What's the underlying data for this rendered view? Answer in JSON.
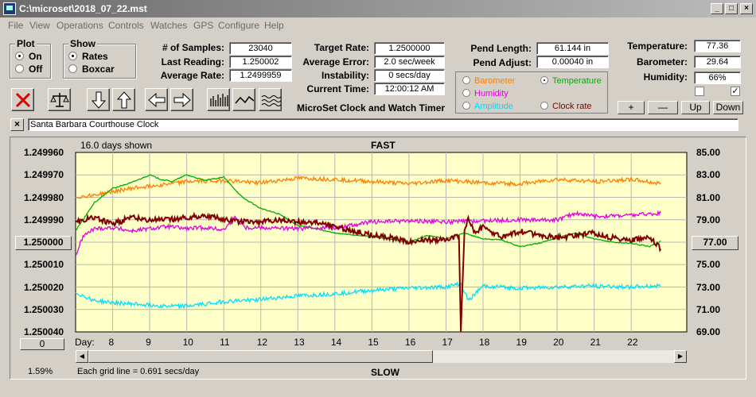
{
  "window": {
    "title": "C:\\microset\\2018_07_22.mst"
  },
  "menu": [
    "File",
    "View",
    "Operations",
    "Controls",
    "Watches",
    "GPS",
    "Configure",
    "Help"
  ],
  "plot_group": {
    "label": "Plot",
    "options": [
      "On",
      "Off"
    ],
    "selected": "On"
  },
  "show_group": {
    "label": "Show",
    "options": [
      "Rates",
      "Boxcar"
    ],
    "selected": "Rates"
  },
  "stats": {
    "samples_label": "# of Samples:",
    "samples": "23040",
    "last_label": "Last Reading:",
    "last": "1.250002",
    "avg_label": "Average Rate:",
    "avg": "1.2499959"
  },
  "targets": {
    "target_label": "Target Rate:",
    "target": "1.2500000",
    "error_label": "Average Error:",
    "error": "2.0 sec/week",
    "instab_label": "Instability:",
    "instab": "0 secs/day",
    "time_label": "Current Time:",
    "time": "12:00:12 AM"
  },
  "pend": {
    "length_label": "Pend Length:",
    "length": "61.144 in",
    "adjust_label": "Pend Adjust:",
    "adjust": "0.00040 in"
  },
  "env": {
    "temp_label": "Temperature:",
    "temp": "77.36",
    "baro_label": "Barometer:",
    "baro": "29.64",
    "hum_label": "Humidity:",
    "hum": "66%"
  },
  "legend": {
    "barometer": "Barometer",
    "temperature": "Temperature",
    "humidity": "Humidity",
    "amplitude": "Amplitude",
    "clock_rate": "Clock rate",
    "selected": "Temperature"
  },
  "checkboxes": {
    "left": false,
    "right": true
  },
  "adjust_buttons": [
    "+",
    "—",
    "Up",
    "Down"
  ],
  "subtitle": "MicroSet Clock and Watch Timer",
  "watch_name": "Santa Barbara Courthouse Clock",
  "colors": {
    "barometer": "#ff8000",
    "temperature": "#00b000",
    "humidity": "#e000e0",
    "amplitude": "#00e0ff",
    "clock_rate": "#800000",
    "plot_bg": "#ffffc8"
  },
  "plot": {
    "days_shown": "16.0 days shown",
    "fast_label": "FAST",
    "slow_label": "SLOW",
    "grid_note": "Each grid line = 0.691 secs/day",
    "left_center_value": "1.250000",
    "right_center_value": "77.00",
    "bottom_button": "0",
    "percent": "1.59%",
    "day_label": "Day:"
  },
  "chart_data": {
    "type": "line",
    "x_ticks": [
      8,
      9,
      10,
      11,
      12,
      13,
      14,
      15,
      16,
      17,
      18,
      19,
      20,
      21,
      22
    ],
    "xlim": [
      7,
      23.5
    ],
    "left_axis": {
      "ticks": [
        "1.249960",
        "1.249970",
        "1.249980",
        "1.249990",
        "1.250000",
        "1.250010",
        "1.250020",
        "1.250030",
        "1.250040"
      ],
      "ylim": [
        1.24996,
        1.25004
      ],
      "reversed": true
    },
    "right_axis": {
      "ticks": [
        "85.00",
        "83.00",
        "81.00",
        "79.00",
        "77.00",
        "75.00",
        "73.00",
        "71.00",
        "69.00"
      ],
      "ylim": [
        69,
        85
      ]
    },
    "series": [
      {
        "key": "barometer",
        "axis": "right",
        "x": [
          7,
          7.5,
          8,
          8.5,
          9,
          9.5,
          10,
          11,
          12,
          13,
          14,
          15,
          16,
          17,
          18,
          19,
          20,
          21,
          22,
          22.8
        ],
        "y": [
          81,
          81.2,
          81.5,
          81.8,
          82,
          82.2,
          82.4,
          82.5,
          82.3,
          82.7,
          82.6,
          82.4,
          82.2,
          82.5,
          82.3,
          82.2,
          82.6,
          82.4,
          82.6,
          82.2
        ]
      },
      {
        "key": "temperature",
        "axis": "right",
        "x": [
          7,
          7.5,
          8,
          8.5,
          9,
          9.3,
          9.6,
          10,
          10.5,
          11,
          11.5,
          12,
          12.5,
          13,
          13.5,
          14,
          15,
          16,
          16.5,
          17,
          17.5,
          18,
          18.5,
          19,
          19.5,
          20,
          20.5,
          21,
          21.5,
          22,
          22.5,
          22.8
        ],
        "y": [
          78,
          80.5,
          81.8,
          82.3,
          83,
          82.6,
          82.4,
          83,
          82.5,
          82.8,
          81,
          80,
          79.5,
          78.5,
          78.2,
          77.8,
          77.5,
          77,
          77.6,
          77.3,
          77.8,
          77.3,
          77.2,
          76.6,
          76.9,
          77.4,
          77.8,
          77.3,
          77.0,
          76.9,
          76.6,
          77.1
        ]
      },
      {
        "key": "humidity",
        "axis": "right",
        "x": [
          7,
          7.2,
          7.5,
          8,
          8.5,
          9,
          9.5,
          10,
          10.5,
          11,
          11.3,
          11.6,
          12,
          13,
          13.5,
          14,
          15,
          16,
          17,
          18,
          19,
          20,
          20.5,
          21,
          22,
          22.8
        ],
        "y": [
          75.8,
          77.5,
          78.2,
          78.3,
          78.0,
          78.2,
          78.4,
          78.2,
          78.3,
          78.1,
          79.2,
          78.3,
          78.3,
          78.2,
          78.3,
          78.3,
          78.8,
          78.9,
          78.8,
          78.9,
          79.0,
          79.0,
          79.6,
          79.3,
          79.4,
          79.6
        ]
      },
      {
        "key": "amplitude",
        "axis": "right",
        "x": [
          7,
          7.5,
          8,
          8.5,
          9,
          9.5,
          10,
          11,
          12,
          13,
          14,
          15,
          16,
          17,
          17.4,
          17.6,
          18,
          19,
          20,
          21,
          22,
          22.8
        ],
        "y": [
          72.5,
          71.8,
          71.6,
          71.5,
          71.4,
          71.3,
          71.3,
          71.7,
          71.9,
          72.2,
          72.4,
          72.7,
          72.9,
          73.0,
          73.3,
          71.8,
          73.1,
          72.9,
          73.0,
          73.1,
          73.0,
          73.1
        ]
      },
      {
        "key": "clock_rate",
        "axis": "left",
        "x": [
          7,
          7.5,
          8,
          8.5,
          9,
          9.5,
          10,
          10.5,
          11,
          11.5,
          12,
          12.5,
          13,
          13.5,
          14,
          14.5,
          15,
          15.5,
          16,
          16.5,
          17,
          17.35,
          17.4,
          17.5,
          17.6,
          17.8,
          18,
          18.5,
          19,
          19.5,
          20,
          20.5,
          21,
          21.5,
          22,
          22.5,
          22.8
        ],
        "y": [
          1.249991,
          1.249989,
          1.249992,
          1.249989,
          1.24999,
          1.24999,
          1.249989,
          1.249988,
          1.24999,
          1.249991,
          1.249991,
          1.24999,
          1.249991,
          1.249991,
          1.249993,
          1.249995,
          1.249997,
          1.249998,
          1.25,
          1.249999,
          1.249999,
          1.249997,
          1.25004,
          1.249994,
          1.24999,
          1.249996,
          1.249993,
          1.249998,
          1.249995,
          1.249997,
          1.249998,
          1.249997,
          1.249996,
          1.249998,
          1.249999,
          1.249998,
          1.250003
        ]
      }
    ]
  }
}
